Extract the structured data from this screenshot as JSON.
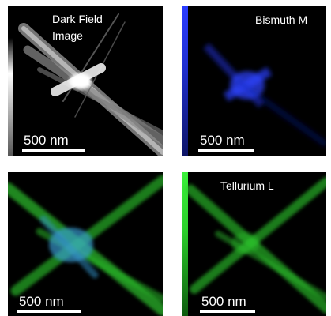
{
  "panels": [
    {
      "name": "dark-field",
      "title_line1": "Dark Field",
      "title_line2": "Image",
      "scalebar": "500 nm"
    },
    {
      "name": "bismuth",
      "title_line1": "Bismuth M",
      "scalebar": "500 nm"
    },
    {
      "name": "overlay",
      "scalebar": "500 nm"
    },
    {
      "name": "tellurium",
      "title_line1": "Tellurium L",
      "scalebar": "500 nm"
    }
  ],
  "colors": {
    "bismuth": "#2a3cff",
    "tellurium": "#2fd82f",
    "overlay_mix": "#3aa0d8",
    "darkfield": "#d8d8d8"
  }
}
